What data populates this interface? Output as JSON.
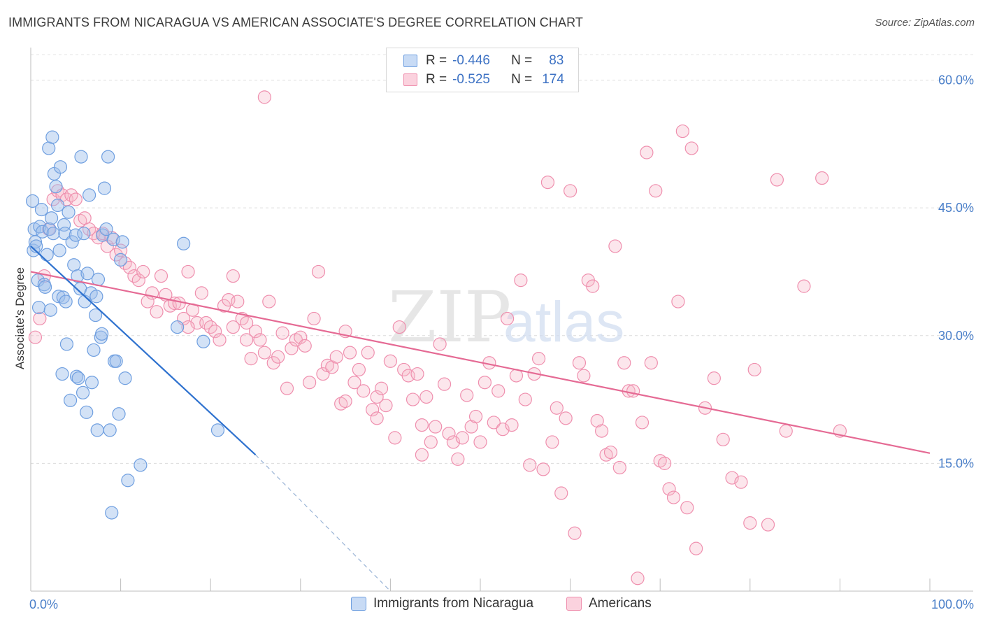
{
  "title": "IMMIGRANTS FROM NICARAGUA VS AMERICAN ASSOCIATE'S DEGREE CORRELATION CHART",
  "source": "Source: ZipAtlas.com",
  "watermark": {
    "zip": "ZIP",
    "atlas": "atlas"
  },
  "legend_top": {
    "rows": [
      {
        "r_label": "R =",
        "r_value": "-0.446",
        "n_label": "N =",
        "n_value": "83",
        "color": "#6f9fe0"
      },
      {
        "r_label": "R =",
        "r_value": "-0.525",
        "n_label": "N =",
        "n_value": "174",
        "color": "#ef8fae"
      }
    ]
  },
  "legend_bottom": [
    {
      "label": "Immigrants from Nicaragua",
      "color": "#6f9fe0"
    },
    {
      "label": "Americans",
      "color": "#ef8fae"
    }
  ],
  "chart_data": {
    "type": "scatter",
    "title": "IMMIGRANTS FROM NICARAGUA VS AMERICAN ASSOCIATE'S DEGREE CORRELATION CHART",
    "xlabel": "",
    "ylabel": "Associate's Degree",
    "xlim": [
      0,
      100
    ],
    "ylim": [
      0,
      63
    ],
    "x_tick_labels": [
      "0.0%",
      "100.0%"
    ],
    "y_ticks": [
      15,
      30,
      45,
      60
    ],
    "y_tick_labels": [
      "15.0%",
      "30.0%",
      "45.0%",
      "60.0%"
    ],
    "grid": true,
    "series": [
      {
        "name": "Immigrants from Nicaragua",
        "color": "#6f9fe0",
        "trend": {
          "x": [
            0,
            25
          ],
          "y": [
            40.5,
            16
          ],
          "dashed_extension_to": [
            40,
            0
          ]
        },
        "points": [
          [
            0.2,
            45.8
          ],
          [
            0.3,
            40.0
          ],
          [
            0.4,
            42.5
          ],
          [
            0.5,
            41.0
          ],
          [
            0.6,
            40.5
          ],
          [
            0.8,
            36.5
          ],
          [
            0.9,
            33.3
          ],
          [
            1.0,
            42.8
          ],
          [
            1.2,
            44.8
          ],
          [
            1.3,
            42.2
          ],
          [
            1.5,
            36.0
          ],
          [
            1.6,
            35.7
          ],
          [
            1.8,
            39.5
          ],
          [
            2.0,
            52.0
          ],
          [
            2.1,
            42.5
          ],
          [
            2.2,
            33.0
          ],
          [
            2.3,
            43.8
          ],
          [
            2.4,
            53.3
          ],
          [
            2.5,
            42.0
          ],
          [
            2.6,
            49.0
          ],
          [
            2.8,
            47.5
          ],
          [
            3.0,
            45.3
          ],
          [
            3.1,
            34.6
          ],
          [
            3.2,
            40.0
          ],
          [
            3.3,
            49.8
          ],
          [
            3.5,
            25.5
          ],
          [
            3.6,
            34.5
          ],
          [
            3.7,
            43.0
          ],
          [
            3.8,
            42.0
          ],
          [
            3.9,
            34.0
          ],
          [
            4.0,
            29.0
          ],
          [
            4.2,
            44.5
          ],
          [
            4.4,
            22.4
          ],
          [
            4.6,
            41.0
          ],
          [
            4.8,
            38.3
          ],
          [
            5.0,
            41.8
          ],
          [
            5.1,
            25.2
          ],
          [
            5.2,
            37.0
          ],
          [
            5.3,
            25.0
          ],
          [
            5.5,
            35.5
          ],
          [
            5.6,
            51.0
          ],
          [
            5.8,
            23.3
          ],
          [
            5.9,
            42.0
          ],
          [
            6.0,
            34.0
          ],
          [
            6.2,
            21.0
          ],
          [
            6.3,
            37.3
          ],
          [
            6.5,
            46.5
          ],
          [
            6.7,
            35.0
          ],
          [
            6.8,
            24.5
          ],
          [
            7.0,
            28.3
          ],
          [
            7.2,
            32.4
          ],
          [
            7.3,
            34.6
          ],
          [
            7.4,
            18.9
          ],
          [
            7.5,
            36.6
          ],
          [
            7.8,
            29.8
          ],
          [
            7.9,
            30.2
          ],
          [
            8.0,
            41.8
          ],
          [
            8.2,
            47.3
          ],
          [
            8.4,
            42.5
          ],
          [
            8.6,
            51.0
          ],
          [
            8.8,
            18.9
          ],
          [
            9.0,
            9.2
          ],
          [
            9.2,
            41.3
          ],
          [
            9.3,
            27.0
          ],
          [
            9.5,
            27.0
          ],
          [
            9.8,
            20.8
          ],
          [
            10.0,
            38.9
          ],
          [
            10.2,
            41.0
          ],
          [
            10.5,
            25.0
          ],
          [
            10.8,
            13.0
          ],
          [
            12.2,
            14.8
          ],
          [
            16.3,
            31.0
          ],
          [
            17.0,
            40.8
          ],
          [
            19.2,
            29.3
          ],
          [
            20.8,
            18.9
          ]
        ]
      },
      {
        "name": "Americans",
        "color": "#ef8fae",
        "trend": {
          "x": [
            0,
            100
          ],
          "y": [
            37.5,
            16.2
          ]
        },
        "points": [
          [
            0.5,
            29.8
          ],
          [
            1.0,
            32.0
          ],
          [
            1.5,
            37.0
          ],
          [
            2.0,
            42.5
          ],
          [
            2.5,
            46.0
          ],
          [
            3.0,
            47.0
          ],
          [
            3.5,
            46.5
          ],
          [
            4.0,
            46.0
          ],
          [
            4.5,
            46.5
          ],
          [
            5.0,
            46.0
          ],
          [
            5.5,
            43.5
          ],
          [
            6.0,
            43.8
          ],
          [
            6.5,
            42.5
          ],
          [
            7.0,
            42.0
          ],
          [
            7.5,
            41.5
          ],
          [
            8.0,
            42.0
          ],
          [
            8.5,
            40.5
          ],
          [
            9.0,
            41.5
          ],
          [
            9.5,
            39.5
          ],
          [
            10.0,
            40.0
          ],
          [
            10.5,
            38.5
          ],
          [
            11.0,
            38.0
          ],
          [
            11.5,
            37.0
          ],
          [
            12.0,
            36.5
          ],
          [
            12.5,
            37.5
          ],
          [
            13.0,
            34.0
          ],
          [
            13.5,
            35.0
          ],
          [
            14.0,
            32.8
          ],
          [
            14.5,
            37.0
          ],
          [
            15.0,
            34.8
          ],
          [
            15.5,
            33.5
          ],
          [
            16.0,
            33.8
          ],
          [
            16.5,
            33.8
          ],
          [
            17.0,
            32.0
          ],
          [
            17.5,
            37.5
          ],
          [
            18.0,
            33.0
          ],
          [
            18.5,
            31.5
          ],
          [
            19.0,
            35.0
          ],
          [
            19.5,
            31.5
          ],
          [
            20.0,
            31.0
          ],
          [
            20.5,
            30.5
          ],
          [
            21.0,
            29.5
          ],
          [
            21.5,
            33.5
          ],
          [
            22.0,
            34.2
          ],
          [
            22.5,
            31.0
          ],
          [
            23.0,
            34.0
          ],
          [
            23.5,
            32.0
          ],
          [
            24.0,
            29.5
          ],
          [
            24.5,
            27.3
          ],
          [
            25.0,
            30.5
          ],
          [
            25.5,
            29.5
          ],
          [
            26.0,
            28.0
          ],
          [
            26.5,
            34.0
          ],
          [
            27.0,
            26.8
          ],
          [
            27.5,
            27.5
          ],
          [
            28.0,
            30.3
          ],
          [
            28.5,
            23.8
          ],
          [
            29.0,
            28.5
          ],
          [
            29.5,
            29.5
          ],
          [
            30.0,
            29.8
          ],
          [
            30.5,
            28.8
          ],
          [
            31.0,
            24.5
          ],
          [
            31.5,
            32.0
          ],
          [
            32.0,
            37.5
          ],
          [
            32.5,
            25.5
          ],
          [
            33.0,
            26.5
          ],
          [
            33.5,
            26.3
          ],
          [
            34.0,
            27.5
          ],
          [
            34.5,
            22.0
          ],
          [
            35.0,
            30.5
          ],
          [
            35.5,
            28.0
          ],
          [
            36.0,
            24.5
          ],
          [
            36.5,
            26.0
          ],
          [
            37.0,
            23.5
          ],
          [
            37.5,
            28.0
          ],
          [
            38.0,
            21.3
          ],
          [
            38.5,
            22.8
          ],
          [
            39.0,
            23.8
          ],
          [
            39.5,
            21.8
          ],
          [
            40.0,
            27.0
          ],
          [
            40.5,
            18.0
          ],
          [
            41.0,
            31.0
          ],
          [
            41.5,
            26.0
          ],
          [
            42.0,
            25.3
          ],
          [
            42.5,
            22.5
          ],
          [
            43.0,
            25.5
          ],
          [
            43.5,
            19.5
          ],
          [
            44.0,
            22.8
          ],
          [
            44.5,
            17.5
          ],
          [
            45.0,
            19.3
          ],
          [
            45.5,
            29.0
          ],
          [
            46.0,
            24.3
          ],
          [
            46.5,
            18.5
          ],
          [
            47.0,
            17.5
          ],
          [
            47.5,
            15.5
          ],
          [
            48.0,
            18.0
          ],
          [
            48.5,
            23.0
          ],
          [
            49.0,
            19.3
          ],
          [
            49.5,
            20.5
          ],
          [
            50.0,
            17.5
          ],
          [
            50.5,
            24.5
          ],
          [
            51.0,
            26.8
          ],
          [
            51.5,
            19.8
          ],
          [
            52.0,
            23.5
          ],
          [
            52.5,
            19.0
          ],
          [
            53.0,
            32.0
          ],
          [
            53.5,
            19.5
          ],
          [
            54.0,
            25.3
          ],
          [
            54.5,
            36.5
          ],
          [
            55.0,
            22.5
          ],
          [
            55.5,
            14.8
          ],
          [
            56.0,
            25.5
          ],
          [
            56.5,
            27.3
          ],
          [
            57.0,
            14.3
          ],
          [
            57.5,
            48.0
          ],
          [
            58.0,
            17.5
          ],
          [
            58.5,
            21.5
          ],
          [
            59.0,
            11.5
          ],
          [
            59.5,
            20.3
          ],
          [
            60.0,
            47.0
          ],
          [
            60.5,
            6.8
          ],
          [
            61.0,
            26.8
          ],
          [
            61.5,
            25.3
          ],
          [
            62.0,
            36.5
          ],
          [
            62.5,
            35.8
          ],
          [
            63.0,
            20.0
          ],
          [
            63.5,
            18.8
          ],
          [
            64.0,
            16.0
          ],
          [
            64.5,
            16.3
          ],
          [
            65.0,
            40.5
          ],
          [
            65.5,
            14.5
          ],
          [
            66.0,
            26.8
          ],
          [
            66.5,
            23.5
          ],
          [
            67.0,
            23.5
          ],
          [
            67.5,
            1.5
          ],
          [
            68.0,
            19.8
          ],
          [
            68.5,
            51.5
          ],
          [
            69.0,
            26.8
          ],
          [
            69.5,
            47.0
          ],
          [
            70.0,
            15.3
          ],
          [
            70.5,
            15.0
          ],
          [
            71.0,
            12.0
          ],
          [
            71.5,
            11.0
          ],
          [
            72.0,
            34.0
          ],
          [
            72.5,
            54.0
          ],
          [
            73.0,
            9.8
          ],
          [
            73.5,
            52.0
          ],
          [
            74.0,
            5.0
          ],
          [
            75.0,
            21.5
          ],
          [
            76.0,
            25.0
          ],
          [
            77.0,
            17.8
          ],
          [
            78.0,
            13.3
          ],
          [
            79.0,
            12.8
          ],
          [
            80.0,
            8.0
          ],
          [
            80.5,
            26.0
          ],
          [
            82.0,
            7.8
          ],
          [
            83.0,
            48.3
          ],
          [
            84.0,
            18.8
          ],
          [
            86.0,
            35.8
          ],
          [
            88.0,
            48.5
          ],
          [
            90.0,
            18.8
          ],
          [
            26.0,
            58.0
          ],
          [
            22.5,
            37.0
          ],
          [
            17.5,
            31.0
          ],
          [
            24.0,
            31.5
          ],
          [
            35.0,
            22.3
          ],
          [
            38.5,
            20.3
          ],
          [
            43.5,
            16.0
          ]
        ]
      }
    ]
  }
}
